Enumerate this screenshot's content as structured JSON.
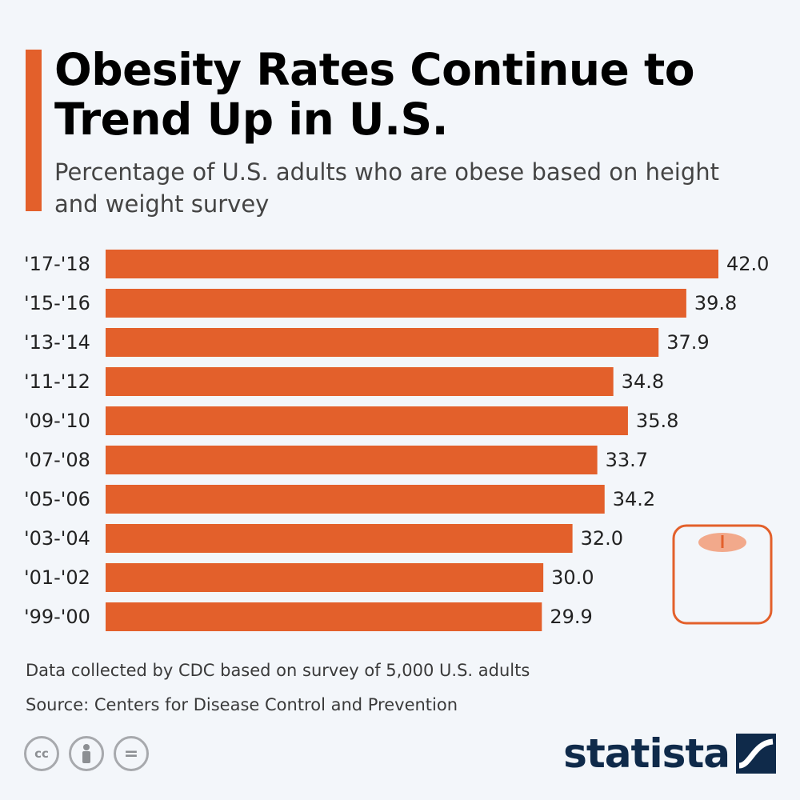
{
  "header": {
    "title": "Obesity Rates Continue to Trend Up in U.S.",
    "subtitle": "Percentage of U.S. adults who are obese based on height and weight survey"
  },
  "colors": {
    "accent": "#e3602b",
    "bar": "#e3602b",
    "brand": "#0f2a4a",
    "scale_top": "#f2a98b",
    "scale_needle": "#e3602b"
  },
  "chart_data": {
    "type": "bar",
    "orientation": "horizontal",
    "title": "Obesity Rates Continue to Trend Up in U.S.",
    "subtitle": "Percentage of U.S. adults who are obese based on height and weight survey",
    "categories": [
      "'17-'18",
      "'15-'16",
      "'13-'14",
      "'11-'12",
      "'09-'10",
      "'07-'08",
      "'05-'06",
      "'03-'04",
      "'01-'02",
      "'99-'00"
    ],
    "values": [
      42.0,
      39.8,
      37.9,
      34.8,
      35.8,
      33.7,
      34.2,
      32.0,
      30.0,
      29.9
    ],
    "value_labels": [
      "42.0",
      "39.8",
      "37.9",
      "34.8",
      "35.8",
      "33.7",
      "34.2",
      "32.0",
      "30.0",
      "29.9"
    ],
    "xlim": [
      0,
      42.0
    ],
    "grid": false,
    "legend": "none"
  },
  "footer": {
    "note": "Data collected by CDC based on survey of 5,000 U.S. adults",
    "source": "Source: Centers for Disease Control and Prevention",
    "license_icons": [
      "cc-icon",
      "attribution-icon",
      "no-derivatives-icon"
    ],
    "license_labels": [
      "cc",
      "",
      "="
    ],
    "brand": "statista"
  },
  "decoration": {
    "icon": "bathroom-scale-icon"
  }
}
